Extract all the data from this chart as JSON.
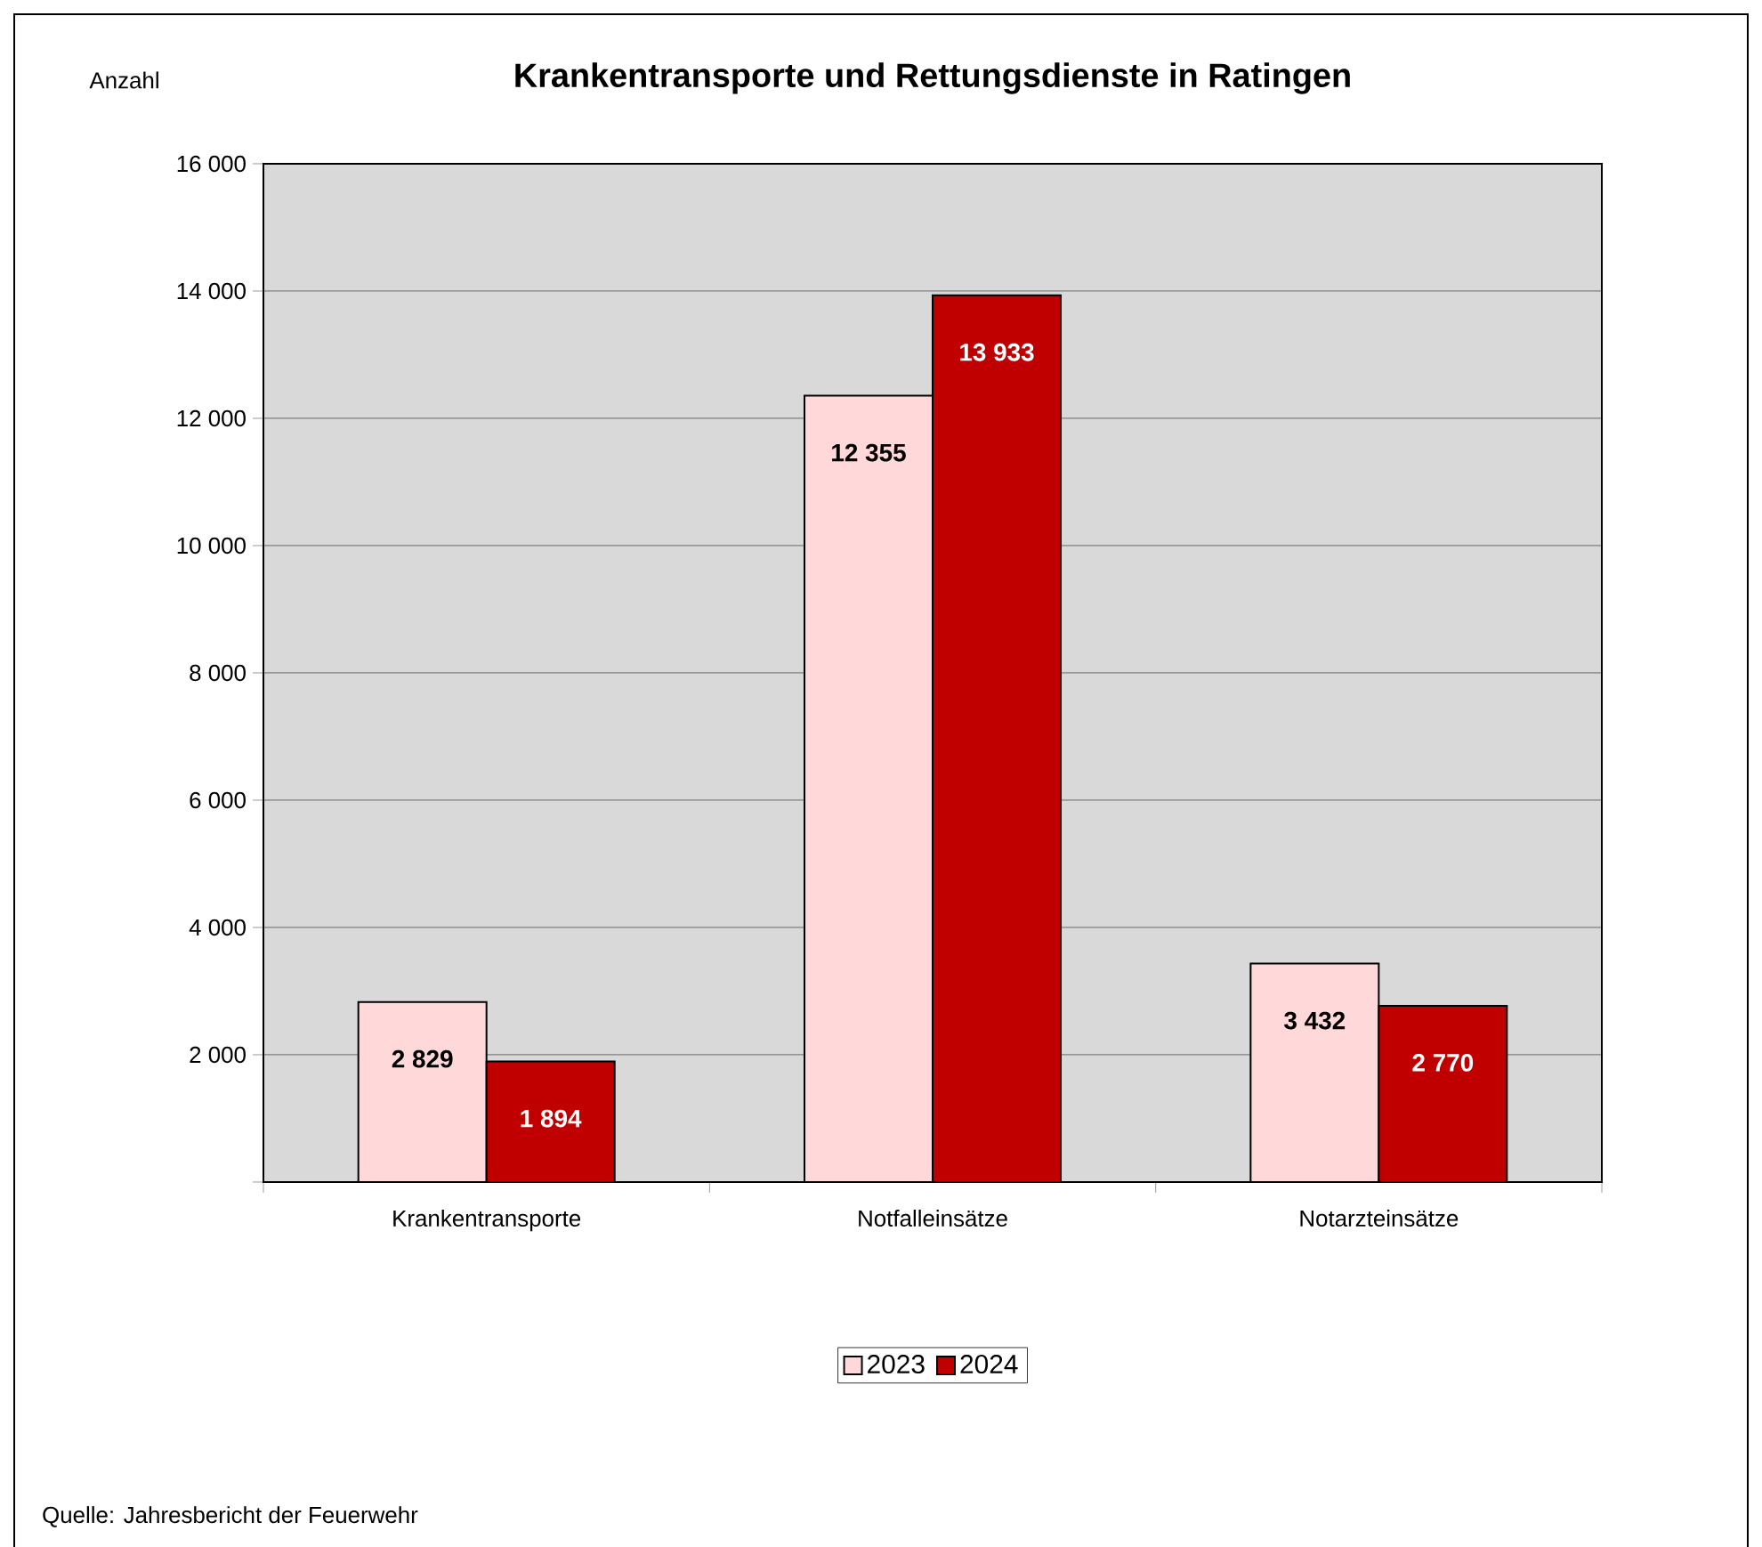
{
  "chart_data": {
    "type": "bar",
    "title": "Krankentransporte und Rettungsdienste in Ratingen",
    "ylabel": "Anzahl",
    "categories": [
      "Krankentransporte",
      "Notfalleinsätze",
      "Notarzteinsätze"
    ],
    "series": [
      {
        "name": "2023",
        "color": "#ffd9d9",
        "values": [
          2829,
          12355,
          3432
        ],
        "value_labels": [
          "2 829",
          "12 355",
          "3 432"
        ]
      },
      {
        "name": "2024",
        "color": "#c00000",
        "values": [
          1894,
          13933,
          2770
        ],
        "value_labels": [
          "1 894",
          "13 933",
          "2 770"
        ]
      }
    ],
    "ylim": [
      0,
      16000
    ],
    "yticks": [
      {
        "value": 0,
        "label": null
      },
      {
        "value": 2000,
        "label": "2 000"
      },
      {
        "value": 4000,
        "label": "4 000"
      },
      {
        "value": 6000,
        "label": "6 000"
      },
      {
        "value": 8000,
        "label": "8 000"
      },
      {
        "value": 10000,
        "label": "10 000"
      },
      {
        "value": 12000,
        "label": "12 000"
      },
      {
        "value": 14000,
        "label": "14 000"
      },
      {
        "value": 16000,
        "label": "16 000"
      }
    ],
    "grid": "y",
    "legend": "bottom",
    "annotations": [
      "Quelle: Jahresbericht der Feuerwehr"
    ]
  }
}
